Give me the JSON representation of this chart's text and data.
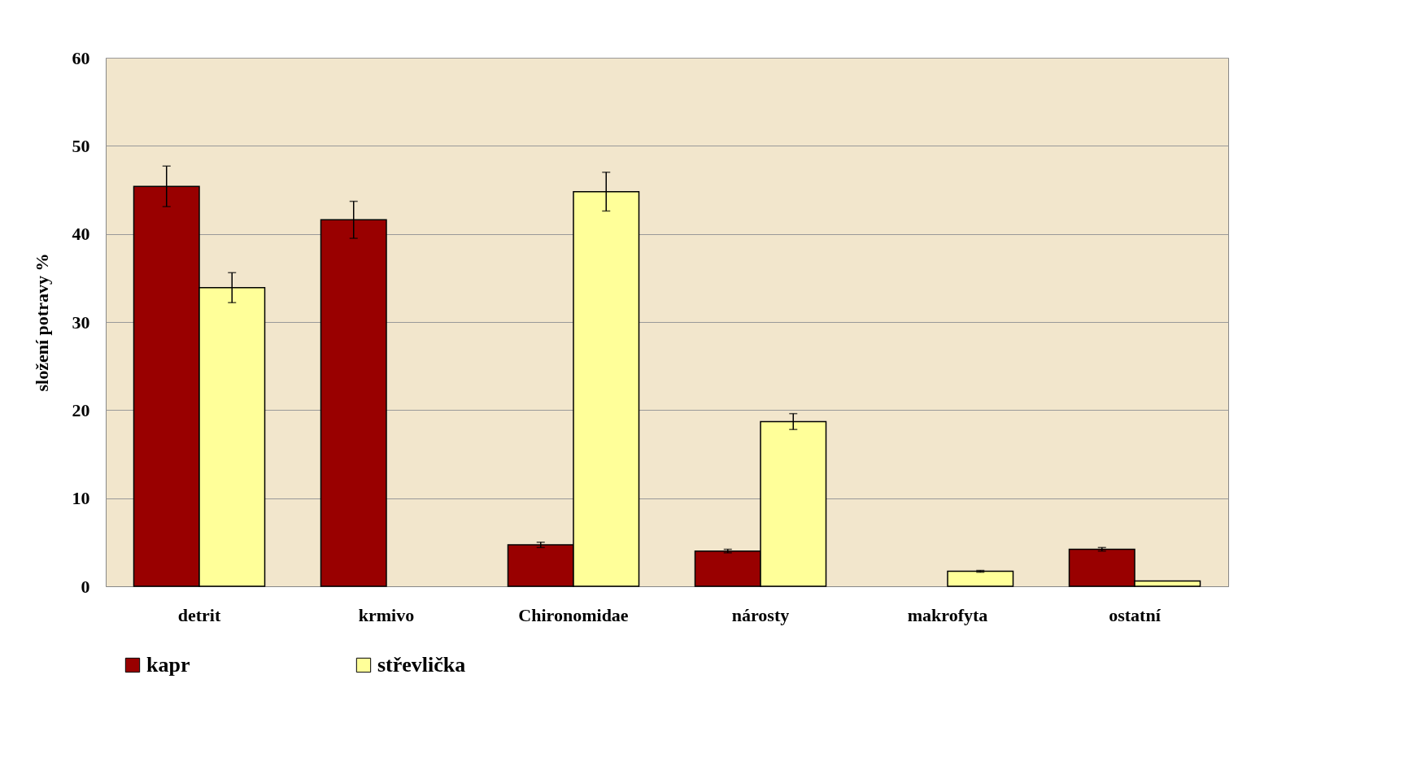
{
  "chart_data": {
    "type": "bar",
    "ylabel": "složení potravy %",
    "categories": [
      "detrit",
      "krmivo",
      "Chironomidae",
      "nárosty",
      "makrofyta",
      "ostatní"
    ],
    "series": [
      {
        "name": "kapr",
        "color": "#990000",
        "values": [
          45.4,
          41.6,
          4.7,
          4.0,
          null,
          4.2
        ],
        "errors": [
          2.3,
          2.1,
          0.3,
          0.2,
          null,
          0.2
        ]
      },
      {
        "name": "střevlička",
        "color": "#ffff99",
        "values": [
          33.9,
          null,
          44.8,
          18.7,
          1.7,
          0.6
        ],
        "errors": [
          1.7,
          null,
          2.2,
          0.9,
          0.1,
          null
        ]
      }
    ],
    "ylim": [
      0,
      60
    ],
    "yticks": [
      0,
      10,
      20,
      30,
      40,
      50,
      60
    ],
    "grid": "y",
    "legend": "bottom"
  }
}
